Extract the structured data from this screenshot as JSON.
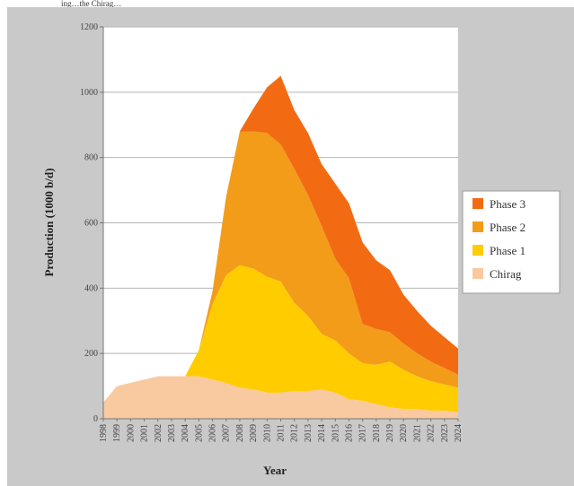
{
  "caption": "ing…the Chirag…",
  "chart_data": {
    "type": "area",
    "stacked": true,
    "xlabel": "Year",
    "ylabel": "Production (1000 b/d)",
    "ylim": [
      0,
      1200
    ],
    "yticks": [
      "0",
      "200",
      "400",
      "600",
      "800",
      "1000",
      "1200"
    ],
    "grid": true,
    "legend_position": "right",
    "x": [
      "1998",
      "1999",
      "2000",
      "2001",
      "2002",
      "2003",
      "2004",
      "2005",
      "2006",
      "2007",
      "2008",
      "2009",
      "2010",
      "2011",
      "2012",
      "2013",
      "2014",
      "2015",
      "2016",
      "2017",
      "2018",
      "2019",
      "2020",
      "2021",
      "2022",
      "2023",
      "2024"
    ],
    "series": [
      {
        "name": "Chirag",
        "color": "#f9c9a0",
        "values": [
          50,
          100,
          110,
          120,
          130,
          130,
          130,
          130,
          120,
          110,
          95,
          90,
          80,
          80,
          85,
          85,
          90,
          80,
          60,
          55,
          45,
          35,
          30,
          30,
          25,
          25,
          20
        ]
      },
      {
        "name": "Phase 1",
        "color": "#ffcc00",
        "values": [
          0,
          0,
          0,
          0,
          0,
          0,
          0,
          80,
          230,
          330,
          375,
          370,
          355,
          340,
          270,
          230,
          170,
          160,
          140,
          115,
          120,
          140,
          120,
          100,
          90,
          80,
          75
        ]
      },
      {
        "name": "Phase 2",
        "color": "#f39c1a",
        "values": [
          0,
          0,
          0,
          0,
          0,
          0,
          0,
          0,
          40,
          240,
          410,
          420,
          440,
          420,
          410,
          370,
          330,
          250,
          230,
          120,
          110,
          90,
          80,
          70,
          60,
          50,
          40
        ]
      },
      {
        "name": "Phase 3",
        "color": "#f26b12",
        "values": [
          0,
          0,
          0,
          0,
          0,
          0,
          0,
          0,
          0,
          0,
          0,
          70,
          140,
          210,
          180,
          190,
          190,
          230,
          230,
          250,
          210,
          190,
          150,
          130,
          110,
          95,
          80
        ]
      }
    ],
    "legend_order": [
      "Phase 3",
      "Phase 2",
      "Phase 1",
      "Chirag"
    ]
  }
}
